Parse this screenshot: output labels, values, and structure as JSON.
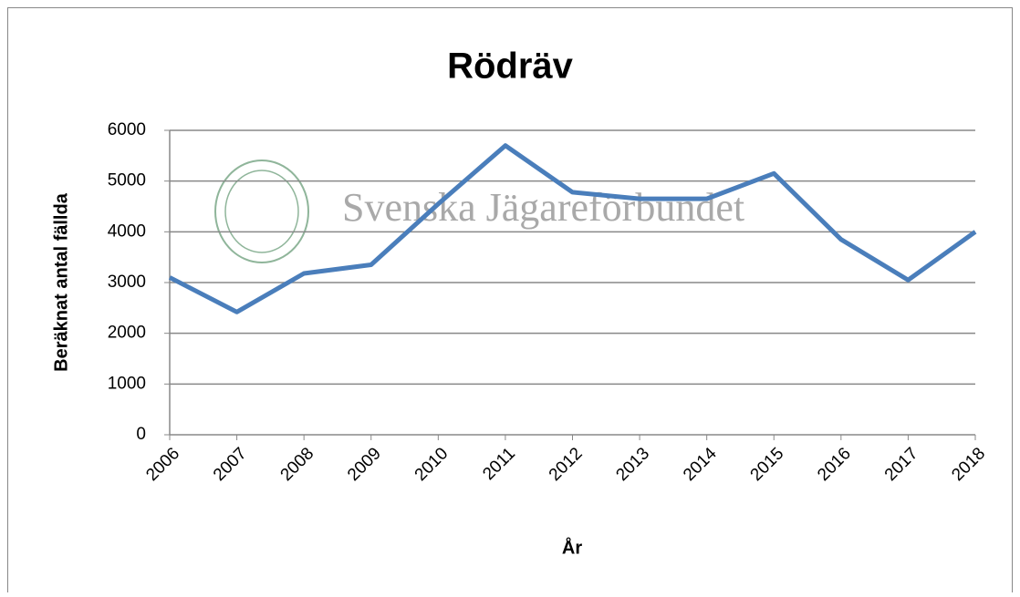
{
  "chart_data": {
    "type": "line",
    "title": "Rödräv",
    "xlabel": "År",
    "ylabel": "Beräknat antal fällda",
    "watermark": "Svenska Jägareförbundet",
    "categories": [
      "2006",
      "2007",
      "2008",
      "2009",
      "2010",
      "2011",
      "2012",
      "2013",
      "2014",
      "2015",
      "2016",
      "2017",
      "2018"
    ],
    "series": [
      {
        "name": "Rödräv",
        "color": "#4a7ebb",
        "values": [
          3100,
          2420,
          3180,
          3350,
          4550,
          5700,
          4780,
          4650,
          4650,
          5150,
          3850,
          3050,
          4000
        ]
      }
    ],
    "ylim": [
      0,
      6000
    ],
    "yticks": [
      0,
      1000,
      2000,
      3000,
      4000,
      5000,
      6000
    ],
    "grid": true
  }
}
